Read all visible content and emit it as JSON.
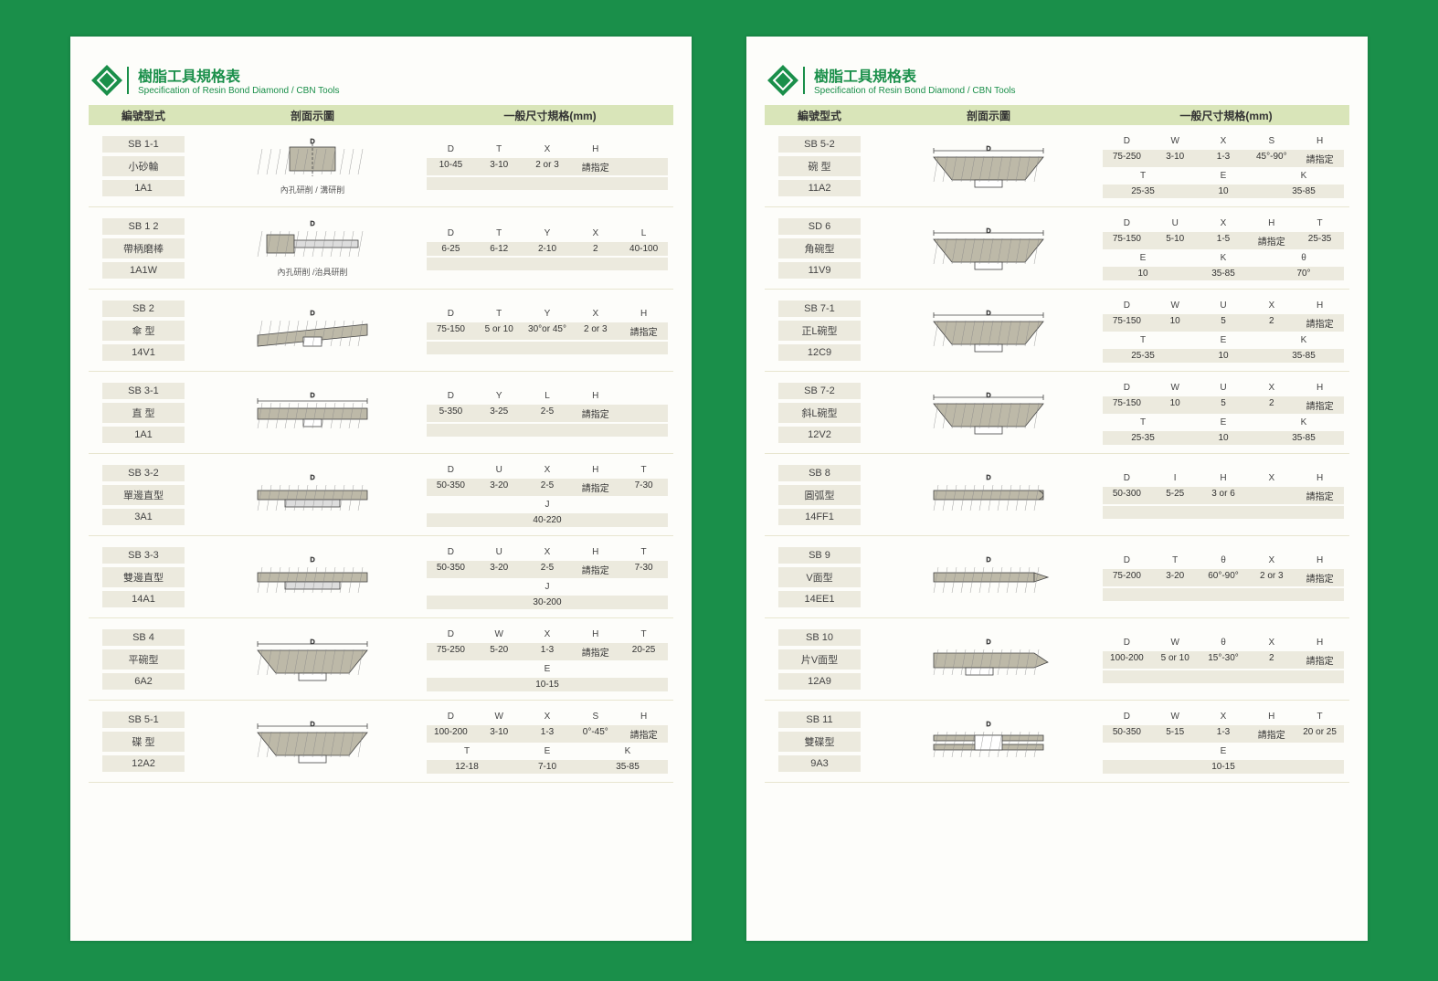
{
  "header": {
    "title_zh": "樹脂工具規格表",
    "title_en": "Specification of Resin Bond Diamond / CBN Tools",
    "col_code": "編號型式",
    "col_diagram": "剖面示圖",
    "col_spec": "一般尺寸規格(mm)"
  },
  "diag_captions": {
    "c1": "內孔研削 / 溝研削",
    "c2": "內孔研削 /治具研削"
  },
  "colors": {
    "bg": "#1a8f4a",
    "page": "#fdfdfa",
    "header_band": "#d9e5b9",
    "cell_bg": "#eceade",
    "accent": "#1a8f4a"
  },
  "left_rows": [
    {
      "codes": [
        "SB 1-1",
        "小砂輪",
        "1A1"
      ],
      "diag": "1a1_small",
      "caption": "c1",
      "spec": [
        {
          "hdr": [
            "D",
            "T",
            "X",
            "H"
          ],
          "val": [
            "10-45",
            "3-10",
            "2 or 3",
            "請指定"
          ]
        }
      ]
    },
    {
      "codes": [
        "SB 1 2",
        "帶柄磨棒",
        "1A1W"
      ],
      "diag": "1a1w",
      "caption": "c2",
      "spec": [
        {
          "hdr": [
            "D",
            "T",
            "Y",
            "X",
            "L"
          ],
          "val": [
            "6-25",
            "6-12",
            "2-10",
            "2",
            "40-100"
          ]
        }
      ]
    },
    {
      "codes": [
        "SB 2",
        "傘 型",
        "14V1"
      ],
      "diag": "14v1",
      "spec": [
        {
          "hdr": [
            "D",
            "T",
            "Y",
            "X",
            "H"
          ],
          "val": [
            "75-150",
            "5 or 10",
            "30°or 45°",
            "2 or 3",
            "請指定"
          ]
        }
      ]
    },
    {
      "codes": [
        "SB 3-1",
        "直 型",
        "1A1"
      ],
      "diag": "1a1",
      "spec": [
        {
          "hdr": [
            "D",
            "Y",
            "L",
            "H"
          ],
          "val": [
            "5-350",
            "3-25",
            "2-5",
            "請指定"
          ]
        }
      ]
    },
    {
      "codes": [
        "SB 3-2",
        "單邊直型",
        "3A1"
      ],
      "diag": "3a1",
      "spec": [
        {
          "hdr": [
            "D",
            "U",
            "X",
            "H",
            "T"
          ],
          "val": [
            "50-350",
            "3-20",
            "2-5",
            "請指定",
            "7-30"
          ]
        },
        {
          "hdr": [
            "J"
          ],
          "val": [
            "40-220"
          ]
        }
      ]
    },
    {
      "codes": [
        "SB 3-3",
        "雙邊直型",
        "14A1"
      ],
      "diag": "14a1",
      "spec": [
        {
          "hdr": [
            "D",
            "U",
            "X",
            "H",
            "T"
          ],
          "val": [
            "50-350",
            "3-20",
            "2-5",
            "請指定",
            "7-30"
          ]
        },
        {
          "hdr": [
            "J"
          ],
          "val": [
            "30-200"
          ]
        }
      ]
    },
    {
      "codes": [
        "SB 4",
        "平碗型",
        "6A2"
      ],
      "diag": "6a2",
      "spec": [
        {
          "hdr": [
            "D",
            "W",
            "X",
            "H",
            "T"
          ],
          "val": [
            "75-250",
            "5-20",
            "1-3",
            "請指定",
            "20-25"
          ]
        },
        {
          "hdr": [
            "E"
          ],
          "val": [
            "10-15"
          ]
        }
      ]
    },
    {
      "codes": [
        "SB 5-1",
        "碟 型",
        "12A2"
      ],
      "diag": "12a2",
      "spec": [
        {
          "hdr": [
            "D",
            "W",
            "X",
            "S",
            "H"
          ],
          "val": [
            "100-200",
            "3-10",
            "1-3",
            "0°-45°",
            "請指定"
          ]
        },
        {
          "hdr": [
            "T",
            "E",
            "K"
          ],
          "val": [
            "12-18",
            "7-10",
            "35-85"
          ]
        }
      ]
    }
  ],
  "right_rows": [
    {
      "codes": [
        "SB 5-2",
        "碗 型",
        "11A2"
      ],
      "diag": "11a2",
      "spec": [
        {
          "hdr": [
            "D",
            "W",
            "X",
            "S",
            "H"
          ],
          "val": [
            "75-250",
            "3-10",
            "1-3",
            "45°-90°",
            "請指定"
          ]
        },
        {
          "hdr": [
            "T",
            "E",
            "K"
          ],
          "val": [
            "25-35",
            "10",
            "35-85"
          ]
        }
      ]
    },
    {
      "codes": [
        "SD 6",
        "角碗型",
        "11V9"
      ],
      "diag": "11v9",
      "spec": [
        {
          "hdr": [
            "D",
            "U",
            "X",
            "H",
            "T"
          ],
          "val": [
            "75-150",
            "5-10",
            "1-5",
            "請指定",
            "25-35"
          ]
        },
        {
          "hdr": [
            "E",
            "K",
            "θ"
          ],
          "val": [
            "10",
            "35-85",
            "70°"
          ]
        }
      ]
    },
    {
      "codes": [
        "SB 7-1",
        "正L碗型",
        "12C9"
      ],
      "diag": "12c9",
      "spec": [
        {
          "hdr": [
            "D",
            "W",
            "U",
            "X",
            "H"
          ],
          "val": [
            "75-150",
            "10",
            "5",
            "2",
            "請指定"
          ]
        },
        {
          "hdr": [
            "T",
            "E",
            "K"
          ],
          "val": [
            "25-35",
            "10",
            "35-85"
          ]
        }
      ]
    },
    {
      "codes": [
        "SB 7-2",
        "斜L碗型",
        "12V2"
      ],
      "diag": "12v2",
      "spec": [
        {
          "hdr": [
            "D",
            "W",
            "U",
            "X",
            "H"
          ],
          "val": [
            "75-150",
            "10",
            "5",
            "2",
            "請指定"
          ]
        },
        {
          "hdr": [
            "T",
            "E",
            "K"
          ],
          "val": [
            "25-35",
            "10",
            "35-85"
          ]
        }
      ]
    },
    {
      "codes": [
        "SB 8",
        "圓弧型",
        "14FF1"
      ],
      "diag": "14ff1",
      "spec": [
        {
          "hdr": [
            "D",
            "I",
            "H",
            "X",
            "H"
          ],
          "val": [
            "50-300",
            "5-25",
            "3 or 6",
            "",
            "請指定"
          ]
        }
      ]
    },
    {
      "codes": [
        "SB 9",
        "V面型",
        "14EE1"
      ],
      "diag": "14ee1",
      "spec": [
        {
          "hdr": [
            "D",
            "T",
            "θ",
            "X",
            "H"
          ],
          "val": [
            "75-200",
            "3-20",
            "60°-90°",
            "2 or 3",
            "請指定"
          ]
        }
      ]
    },
    {
      "codes": [
        "SB 10",
        "片V面型",
        "12A9"
      ],
      "diag": "12a9",
      "spec": [
        {
          "hdr": [
            "D",
            "W",
            "θ",
            "X",
            "H"
          ],
          "val": [
            "100-200",
            "5 or 10",
            "15°-30°",
            "2",
            "請指定"
          ]
        }
      ]
    },
    {
      "codes": [
        "SB 11",
        "雙碟型",
        "9A3"
      ],
      "diag": "9a3",
      "spec": [
        {
          "hdr": [
            "D",
            "W",
            "X",
            "H",
            "T"
          ],
          "val": [
            "50-350",
            "5-15",
            "1-3",
            "請指定",
            "20 or 25"
          ]
        },
        {
          "hdr": [
            "E"
          ],
          "val": [
            "10-15"
          ]
        }
      ]
    }
  ]
}
